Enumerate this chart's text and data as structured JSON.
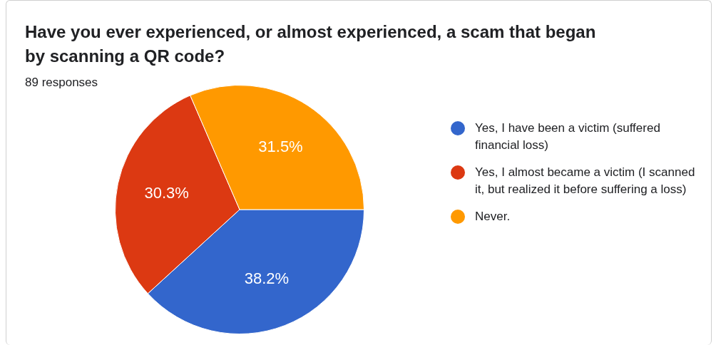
{
  "chart_data": {
    "type": "pie",
    "title": "Have you ever experienced, or almost experienced, a scam that began by scanning a QR code?",
    "subtitle": "89 responses",
    "categories": [
      "Yes, I have been a victim (suffered financial loss)",
      "Yes, I almost became a victim (I scanned it, but realized it before suffering a loss)",
      "Never."
    ],
    "values": [
      38.2,
      30.3,
      31.5
    ],
    "colors": [
      "#3366cc",
      "#dc3912",
      "#ff9900"
    ],
    "value_labels": [
      "38.2%",
      "30.3%",
      "31.5%"
    ],
    "legend": "right"
  }
}
